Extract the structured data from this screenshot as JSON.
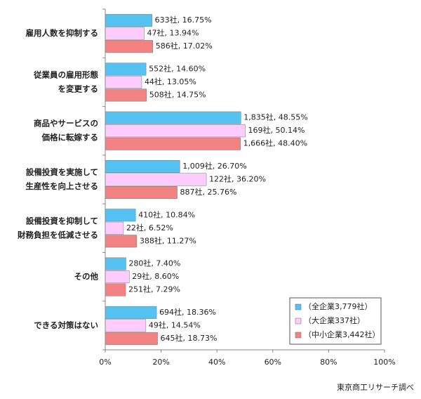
{
  "chart_data": {
    "type": "bar",
    "orientation": "horizontal",
    "categories": [
      [
        "雇用人数を抑制する"
      ],
      [
        "従業員の雇用形態",
        "を変更する"
      ],
      [
        "商品やサービスの",
        "価格に転嫁する"
      ],
      [
        "設備投資を実施して",
        "生産性を向上させる"
      ],
      [
        "設備投資を抑制して",
        "財務負担を低減させる"
      ],
      [
        "その他"
      ],
      [
        "できる対策はない"
      ]
    ],
    "series": [
      {
        "name": "（全企業3,779社）",
        "color": "#55c2f2",
        "values": [
          16.75,
          14.6,
          48.55,
          26.7,
          10.84,
          7.4,
          18.36
        ],
        "value_labels": [
          "633社, 16.75%",
          "552社, 14.60%",
          "1,835社, 48.55%",
          "1,009社, 26.70%",
          "410社, 10.84%",
          "280社, 7.40%",
          "694社, 18.36%"
        ]
      },
      {
        "name": "（大企業337社）",
        "color": "#ffccff",
        "values": [
          13.94,
          13.05,
          50.14,
          36.2,
          6.52,
          8.6,
          14.54
        ],
        "value_labels": [
          "47社, 13.94%",
          "44社, 13.05%",
          "169社, 50.14%",
          "122社, 36.20%",
          "22社, 6.52%",
          "29社, 8.60%",
          "49社, 14.54%"
        ]
      },
      {
        "name": "（中小企業3,442社）",
        "color": "#f38383",
        "values": [
          17.02,
          14.75,
          48.4,
          25.76,
          11.27,
          7.29,
          18.73
        ],
        "value_labels": [
          "586社, 17.02%",
          "508社, 14.75%",
          "1,666社, 48.40%",
          "887社, 25.76%",
          "388社, 11.27%",
          "251社, 7.29%",
          "645社, 18.73%"
        ]
      }
    ],
    "xlim": [
      0,
      100
    ],
    "xticks": [
      {
        "value": 0,
        "label": "0%"
      },
      {
        "value": 20,
        "label": "20%"
      },
      {
        "value": 40,
        "label": "40%"
      },
      {
        "value": 60,
        "label": "60%"
      },
      {
        "value": 80,
        "label": "80%"
      },
      {
        "value": 100,
        "label": "100%"
      }
    ],
    "legend": "lower right",
    "source": "東京商工リサーチ調べ"
  }
}
